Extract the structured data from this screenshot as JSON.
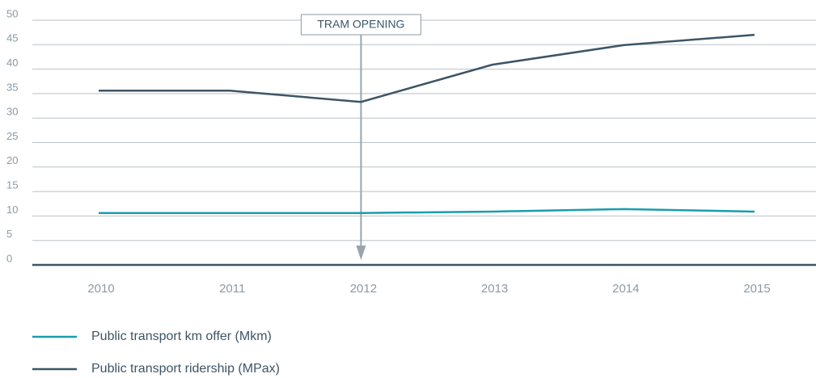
{
  "chart_data": {
    "type": "line",
    "categories": [
      "2010",
      "2011",
      "2012",
      "2013",
      "2014",
      "2015"
    ],
    "series": [
      {
        "name": "Public transport km offer (Mkm)",
        "color": "#1a9cb0",
        "values": [
          10.6,
          10.6,
          10.6,
          10.9,
          11.4,
          10.9
        ]
      },
      {
        "name": "Public transport ridership (MPax)",
        "color": "#3d5566",
        "values": [
          35.6,
          35.6,
          33.3,
          40.9,
          44.9,
          47.0
        ]
      }
    ],
    "ylim": [
      0,
      50
    ],
    "yticks": [
      0,
      5,
      10,
      15,
      20,
      25,
      30,
      35,
      40,
      45,
      50
    ],
    "grid": true,
    "annotations": [
      {
        "text": "TRAM OPENING",
        "category": "2012"
      }
    ]
  }
}
